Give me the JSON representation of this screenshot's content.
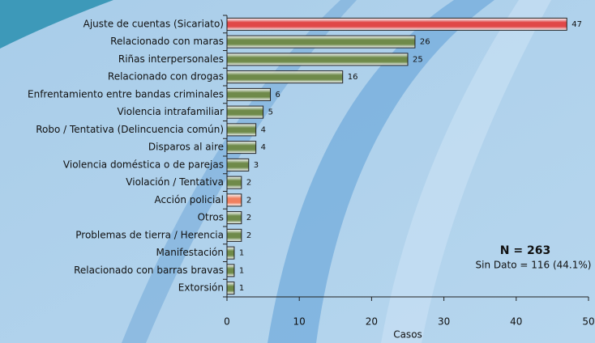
{
  "chart_data": {
    "type": "barh",
    "categories": [
      "Ajuste de cuentas (Sicariato)",
      "Relacionado con maras",
      "Riñas interpersonales",
      "Relacionado con drogas",
      "Enfrentamiento entre bandas criminales",
      "Violencia intrafamiliar",
      "Robo / Tentativa (Delincuencia común)",
      "Disparos al aire",
      "Violencia doméstica o de parejas",
      "Violación / Tentativa",
      "Acción policial",
      "Otros",
      "Problemas de tierra / Herencia",
      "Manifestación",
      "Relacionado con barras bravas",
      "Extorsión"
    ],
    "values": [
      47,
      26,
      25,
      16,
      6,
      5,
      4,
      4,
      3,
      2,
      2,
      2,
      2,
      1,
      1,
      1
    ],
    "colors": [
      "#e04848",
      "#6f8a4a",
      "#6f8a4a",
      "#6f8a4a",
      "#6f8a4a",
      "#6f8a4a",
      "#6f8a4a",
      "#6f8a4a",
      "#6f8a4a",
      "#6f8a4a",
      "#f08060",
      "#6f8a4a",
      "#6f8a4a",
      "#6f8a4a",
      "#6f8a4a",
      "#6f8a4a"
    ],
    "xlabel": "Casos",
    "xlim": [
      0,
      50
    ],
    "xticks": [
      0,
      10,
      20,
      30,
      40,
      50
    ],
    "annotations": [
      "N = 263",
      "Sin Dato = 116 (44.1%)"
    ]
  }
}
